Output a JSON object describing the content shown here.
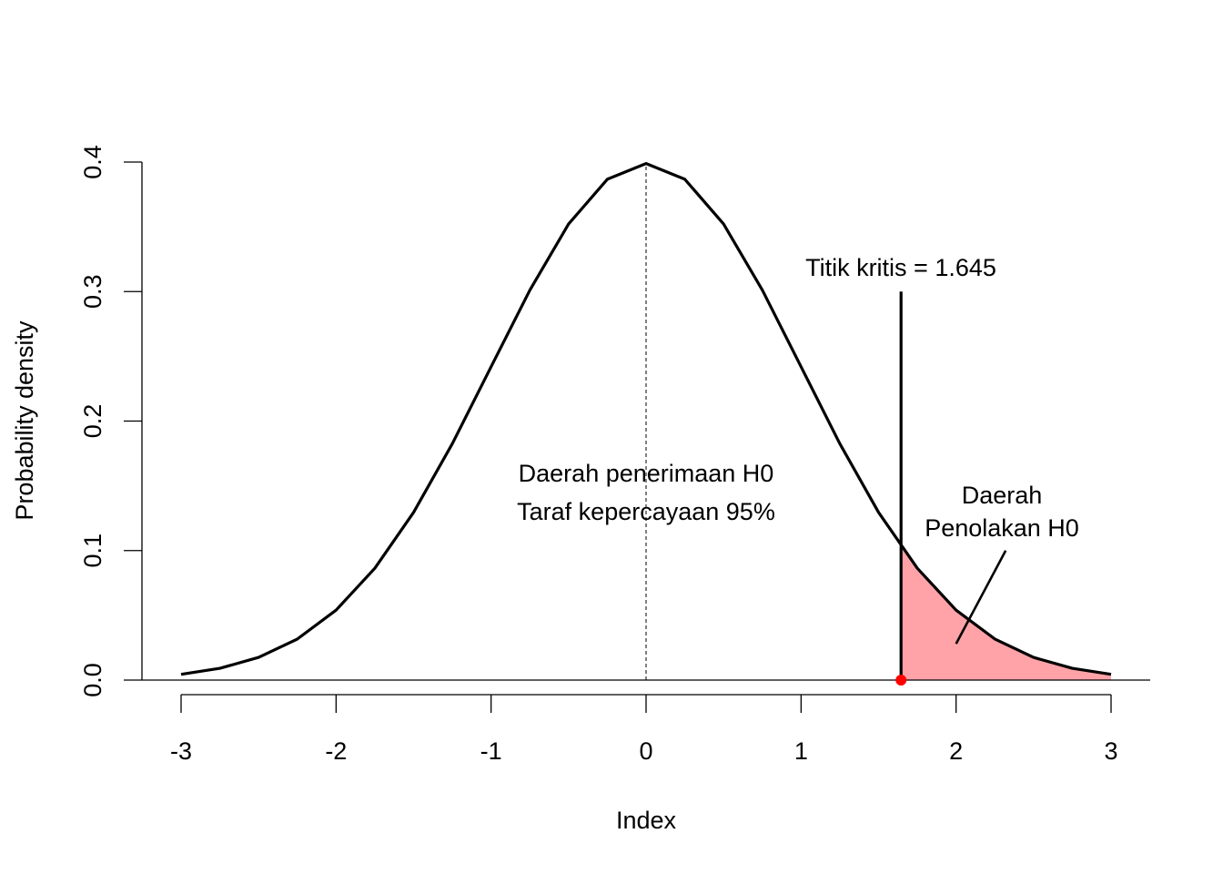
{
  "chart_data": {
    "type": "line",
    "title": "",
    "xlabel": "Index",
    "ylabel": "Probability density",
    "xlim": [
      -3,
      3
    ],
    "ylim": [
      0,
      0.4
    ],
    "xticks": [
      "-3",
      "-2",
      "-1",
      "0",
      "1",
      "2",
      "3"
    ],
    "yticks": [
      "0.0",
      "0.1",
      "0.2",
      "0.3",
      "0.4"
    ],
    "grid": false,
    "series": [
      {
        "x": [
          -3,
          -2.75,
          -2.5,
          -2.25,
          -2,
          -1.75,
          -1.5,
          -1.25,
          -1,
          -0.75,
          -0.5,
          -0.25,
          0,
          0.25,
          0.5,
          0.75,
          1,
          1.25,
          1.5,
          1.75,
          2,
          2.25,
          2.5,
          2.75,
          3
        ],
        "values": [
          0.0044,
          0.0091,
          0.0175,
          0.0317,
          0.054,
          0.0863,
          0.1295,
          0.1826,
          0.242,
          0.3011,
          0.3521,
          0.3867,
          0.3989,
          0.3867,
          0.3521,
          0.3011,
          0.242,
          0.1826,
          0.1295,
          0.0863,
          0.054,
          0.0317,
          0.0175,
          0.0091,
          0.0044
        ]
      }
    ],
    "critical_value": 1.645,
    "critical_line_top": 0.3,
    "rejection_fill_color": "#FFA3A8",
    "critical_point_color": "#FF0000",
    "annotations": {
      "critical_label": "Titik kritis = 1.645",
      "acceptance_line1": "Daerah penerimaan H0",
      "acceptance_line2": "Taraf kepercayaan 95%",
      "rejection_line1": "Daerah",
      "rejection_line2": "Penolakan H0"
    },
    "arrow": {
      "from": [
        2.32,
        0.1
      ],
      "to": [
        2.0,
        0.028
      ]
    }
  }
}
